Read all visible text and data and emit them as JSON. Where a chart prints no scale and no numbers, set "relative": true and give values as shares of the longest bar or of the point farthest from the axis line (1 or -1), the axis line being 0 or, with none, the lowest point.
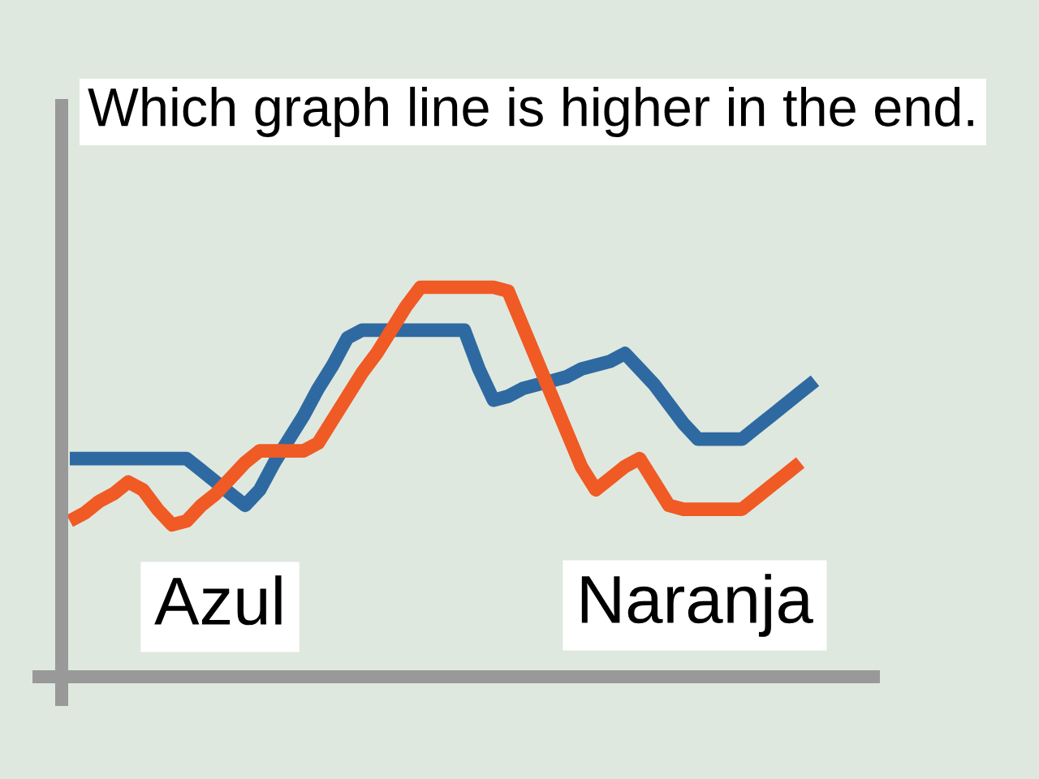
{
  "chart_data": {
    "type": "line",
    "title": "Which graph line is higher in the end.",
    "annotations": [
      "Azul",
      "Naranja"
    ],
    "relative": true,
    "line_style": "solid",
    "categories": [
      null,
      null,
      null,
      null,
      null,
      null,
      null,
      null,
      null,
      null,
      null,
      null,
      null,
      null,
      null,
      null,
      null,
      null,
      null,
      null,
      null,
      null,
      null,
      null,
      null,
      null,
      null,
      null,
      null,
      null,
      null,
      null,
      null,
      null,
      null,
      null,
      null,
      null,
      null,
      null,
      null,
      null,
      null,
      null,
      null,
      null,
      null,
      null,
      null,
      null,
      null,
      null
    ],
    "series": [
      {
        "color": "#2e6aa1",
        "values": [
          0.56,
          0.56,
          0.56,
          0.56,
          0.56,
          0.56,
          0.56,
          0.56,
          0.56,
          0.53,
          0.5,
          0.47,
          0.44,
          0.48,
          0.55,
          0.61,
          0.67,
          0.74,
          0.8,
          0.87,
          0.89,
          0.89,
          0.89,
          0.89,
          0.89,
          0.89,
          0.89,
          0.89,
          0.79,
          0.71,
          0.72,
          0.74,
          0.75,
          0.76,
          0.77,
          0.79,
          0.8,
          0.81,
          0.83,
          0.79,
          0.75,
          0.7,
          0.65,
          0.61,
          0.61,
          0.61,
          0.61,
          0.64,
          0.67,
          0.7,
          0.73,
          0.76
        ]
      },
      {
        "color": "#f05a24",
        "values": [
          0.4,
          0.42,
          0.45,
          0.47,
          0.5,
          0.48,
          0.43,
          0.39,
          0.4,
          0.44,
          0.47,
          0.51,
          0.55,
          0.58,
          0.58,
          0.58,
          0.58,
          0.6,
          0.66,
          0.72,
          0.78,
          0.83,
          0.89,
          0.95,
          1.0,
          1.0,
          1.0,
          1.0,
          1.0,
          1.0,
          0.99,
          0.9,
          0.81,
          0.72,
          0.63,
          0.54,
          0.48,
          0.51,
          0.54,
          0.56,
          0.5,
          0.44,
          0.43,
          0.43,
          0.43,
          0.43,
          0.43,
          0.46,
          0.49,
          0.52,
          0.55,
          null
        ]
      }
    ]
  }
}
